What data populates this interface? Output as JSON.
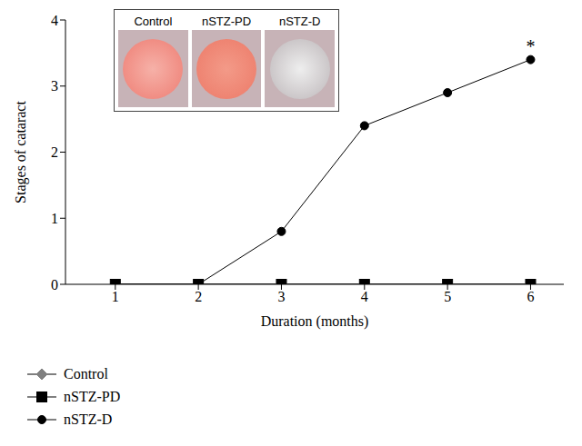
{
  "chart_data": {
    "type": "line",
    "x_label": "Duration (months)",
    "y_label": "Stages of cataract",
    "x": [
      1,
      2,
      3,
      4,
      5,
      6
    ],
    "xlim": [
      0.4,
      6.4
    ],
    "xticks": [
      1,
      2,
      3,
      4,
      5,
      6
    ],
    "ylim": [
      0,
      4
    ],
    "yticks": [
      0,
      1,
      2,
      3,
      4
    ],
    "grid": false,
    "legend": "bottom left",
    "series": [
      {
        "name": "Control",
        "color": "#808080",
        "marker": "diamond",
        "line_style": "solid",
        "values": [
          0,
          0,
          0,
          0,
          0,
          0
        ]
      },
      {
        "name": "nSTZ-PD",
        "color": "#000000",
        "marker": "square",
        "line_style": "solid",
        "values": [
          0,
          0,
          0,
          0,
          0,
          0
        ]
      },
      {
        "name": "nSTZ-D",
        "color": "#000000",
        "marker": "circle",
        "line_style": "solid",
        "values": [
          0,
          0,
          0.8,
          2.4,
          2.9,
          3.4
        ]
      }
    ],
    "annotations": [
      {
        "text": "*",
        "x": 6,
        "y": 3.4
      }
    ],
    "inset_labels": [
      "Control",
      "nSTZ-PD",
      "nSTZ-D"
    ]
  }
}
